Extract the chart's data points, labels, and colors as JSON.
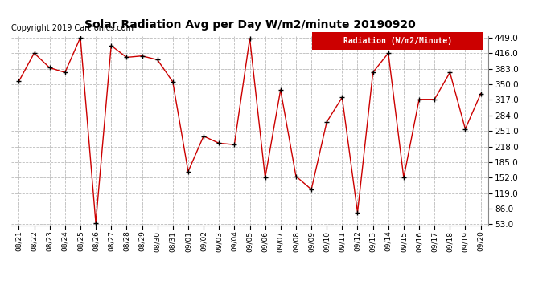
{
  "title": "Solar Radiation Avg per Day W/m2/minute 20190920",
  "copyright": "Copyright 2019 Cartronics.com",
  "legend_label": "Radiation (W/m2/Minute)",
  "dates": [
    "08/21",
    "08/22",
    "08/23",
    "08/24",
    "08/25",
    "08/26",
    "08/27",
    "08/28",
    "08/29",
    "08/30",
    "08/31",
    "09/01",
    "09/02",
    "09/03",
    "09/04",
    "09/05",
    "09/06",
    "09/07",
    "09/08",
    "09/09",
    "09/10",
    "09/11",
    "09/12",
    "09/13",
    "09/14",
    "09/15",
    "09/16",
    "09/17",
    "09/18",
    "09/19",
    "09/20"
  ],
  "values": [
    356,
    416,
    385,
    375,
    449,
    56,
    432,
    407,
    410,
    402,
    355,
    165,
    240,
    225,
    222,
    447,
    152,
    338,
    155,
    127,
    270,
    322,
    78,
    375,
    416,
    152,
    318,
    318,
    375,
    255,
    330
  ],
  "line_color": "#cc0000",
  "marker_color": "#000000",
  "bg_color": "#ffffff",
  "grid_color": "#bbbbbb",
  "ylim_min": 53.0,
  "ylim_max": 449.0,
  "yticks": [
    53.0,
    86.0,
    119.0,
    152.0,
    185.0,
    218.0,
    251.0,
    284.0,
    317.0,
    350.0,
    383.0,
    416.0,
    449.0
  ],
  "title_fontsize": 10,
  "copyright_fontsize": 7,
  "legend_bg": "#cc0000",
  "legend_text_color": "#ffffff",
  "legend_fontsize": 7
}
